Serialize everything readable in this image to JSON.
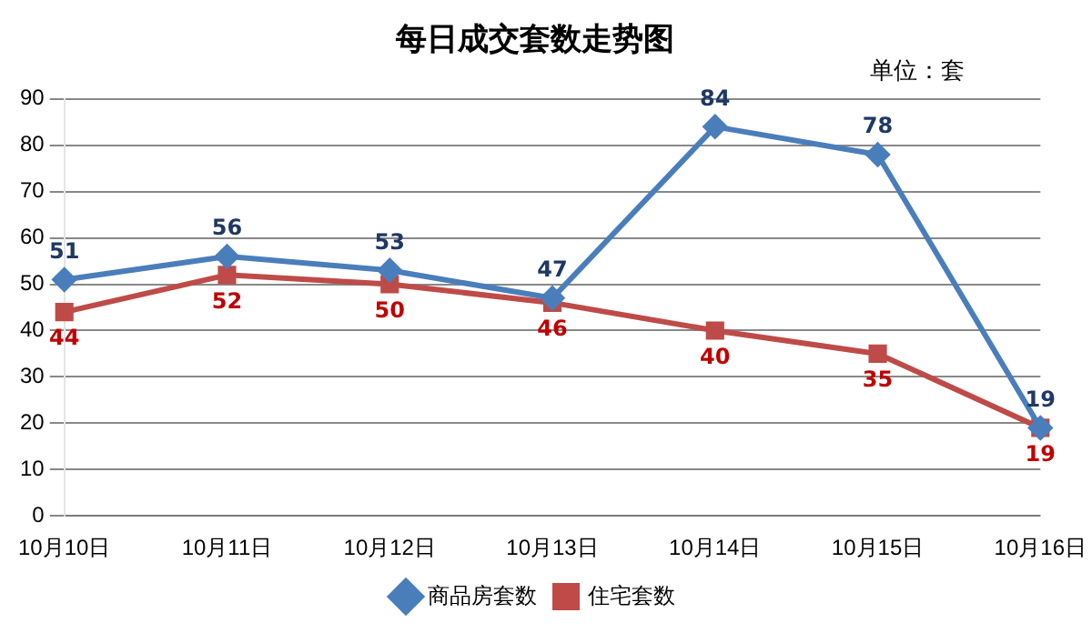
{
  "chart_data": {
    "type": "line",
    "title": "每日成交套数走势图",
    "annotations": [
      "单位：套"
    ],
    "categories": [
      "10月10日",
      "10月11日",
      "10月12日",
      "10月13日",
      "10月14日",
      "10月15日",
      "10月16日"
    ],
    "series": [
      {
        "name": "商品房套数",
        "color": "#4a7ebb",
        "marker": "diamond",
        "values": [
          51,
          56,
          53,
          47,
          84,
          78,
          19
        ]
      },
      {
        "name": "住宅套数",
        "color": "#be4b48",
        "marker": "square",
        "values": [
          44,
          52,
          50,
          46,
          40,
          35,
          19
        ]
      }
    ],
    "ylim": [
      0,
      90
    ],
    "yticks": [
      0,
      10,
      20,
      30,
      40,
      50,
      60,
      70,
      80,
      90
    ],
    "grid": "y",
    "legend": "bottom",
    "data_labels": true,
    "line_style": "solid"
  }
}
